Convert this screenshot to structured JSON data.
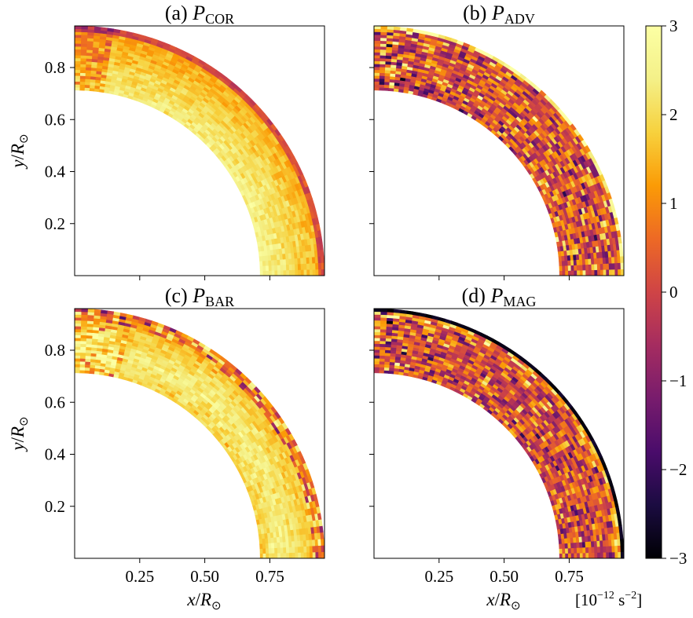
{
  "figure": {
    "colorbar": {
      "ticks": [
        "3",
        "2",
        "1",
        "0",
        "−1",
        "−2",
        "−3"
      ],
      "tick_values": [
        3,
        2,
        1,
        0,
        -1,
        -2,
        -3
      ],
      "range": [
        -3,
        3
      ],
      "unit_base": "[10",
      "unit_exp": "−12",
      "unit_mid": " s",
      "unit_exp2": "−2",
      "unit_end": "]",
      "colormap": "inferno"
    },
    "x_ticks": [
      "0.25",
      "0.50",
      "0.75"
    ],
    "y_ticks": [
      "0.8",
      "0.6",
      "0.4",
      "0.2"
    ],
    "x_label": {
      "var": "x",
      "slash": "/",
      "R": "R",
      "sub": "⊙"
    },
    "y_label": {
      "var": "y",
      "slash": "/",
      "R": "R",
      "sub": "⊙"
    }
  },
  "chart_data": [
    {
      "type": "heatmap",
      "title_prefix": "(a) ",
      "title_P": "P",
      "title_sub": "COR",
      "xlim": [
        0,
        0.96
      ],
      "ylim": [
        0,
        0.96
      ],
      "r_inner": 0.713,
      "r_outer": 0.96,
      "character": "mostly positive, smooth, peaking near the inner boundary"
    },
    {
      "type": "heatmap",
      "title_prefix": "(b) ",
      "title_P": "P",
      "title_sub": "ADV",
      "xlim": [
        0,
        0.96
      ],
      "ylim": [
        0,
        0.96
      ],
      "r_inner": 0.713,
      "r_outer": 0.96,
      "character": "noisy small-scale pattern of positive and negative values"
    },
    {
      "type": "heatmap",
      "title_prefix": "(c) ",
      "title_P": "P",
      "title_sub": "BAR",
      "xlim": [
        0,
        0.96
      ],
      "ylim": [
        0,
        0.96
      ],
      "r_inner": 0.713,
      "r_outer": 0.96,
      "character": "mostly positive, strongest at mid radii, negative plumes near the surface"
    },
    {
      "type": "heatmap",
      "title_prefix": "(d) ",
      "title_P": "P",
      "title_sub": "MAG",
      "xlim": [
        0,
        0.96
      ],
      "ylim": [
        0,
        0.96
      ],
      "r_inner": 0.713,
      "r_outer": 0.96,
      "character": "noisy, negative layer at the outer boundary"
    }
  ]
}
